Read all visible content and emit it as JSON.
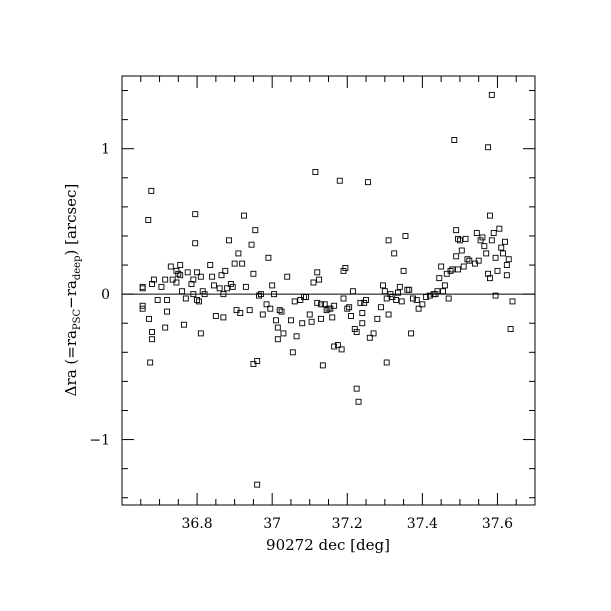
{
  "chart_data": {
    "type": "scatter",
    "xlabel": "90272 dec [deg]",
    "ylabel_parts": {
      "main": "Δra (=ra",
      "sub1": "PSC",
      "minus": "−ra",
      "sub2": "deep",
      "tail": ") [arcsec]"
    },
    "xlim": [
      36.6,
      37.7
    ],
    "ylim": [
      -1.45,
      1.5
    ],
    "xticks": [
      36.8,
      37.0,
      37.2,
      37.4,
      37.6
    ],
    "xtick_labels": [
      "36.8",
      "37",
      "37.2",
      "37.4",
      "37.6"
    ],
    "yticks": [
      -1,
      0,
      1
    ],
    "ytick_labels": [
      "−1",
      "0",
      "1"
    ],
    "reference_line_y": 0,
    "marker": "open-square",
    "points": [
      [
        36.655,
        0.05
      ],
      [
        36.655,
        0.04
      ],
      [
        36.655,
        -0.08
      ],
      [
        36.655,
        -0.1
      ],
      [
        36.67,
        0.51
      ],
      [
        36.672,
        -0.17
      ],
      [
        36.675,
        -0.47
      ],
      [
        36.678,
        0.71
      ],
      [
        36.68,
        -0.26
      ],
      [
        36.68,
        -0.31
      ],
      [
        36.68,
        0.07
      ],
      [
        36.685,
        0.1
      ],
      [
        36.695,
        -0.04
      ],
      [
        36.705,
        0.05
      ],
      [
        36.715,
        0.1
      ],
      [
        36.715,
        -0.23
      ],
      [
        36.72,
        -0.04
      ],
      [
        36.72,
        -0.12
      ],
      [
        36.73,
        0.19
      ],
      [
        36.735,
        0.1
      ],
      [
        36.745,
        0.16
      ],
      [
        36.745,
        0.08
      ],
      [
        36.75,
        0.14
      ],
      [
        36.755,
        0.2
      ],
      [
        36.755,
        0.13
      ],
      [
        36.76,
        0.02
      ],
      [
        36.765,
        -0.21
      ],
      [
        36.77,
        -0.03
      ],
      [
        36.775,
        0.15
      ],
      [
        36.785,
        0.07
      ],
      [
        36.79,
        0.1
      ],
      [
        36.79,
        0.0
      ],
      [
        36.795,
        0.55
      ],
      [
        36.795,
        0.35
      ],
      [
        36.8,
        0.15
      ],
      [
        36.8,
        -0.04
      ],
      [
        36.805,
        -0.05
      ],
      [
        36.81,
        -0.27
      ],
      [
        36.81,
        0.12
      ],
      [
        36.815,
        0.02
      ],
      [
        36.82,
        0.0
      ],
      [
        36.835,
        0.2
      ],
      [
        36.84,
        0.12
      ],
      [
        36.845,
        0.06
      ],
      [
        36.85,
        -0.15
      ],
      [
        36.86,
        0.04
      ],
      [
        36.865,
        0.13
      ],
      [
        36.87,
        -0.16
      ],
      [
        36.87,
        0.0
      ],
      [
        36.875,
        0.16
      ],
      [
        36.88,
        0.04
      ],
      [
        36.885,
        0.37
      ],
      [
        36.89,
        0.07
      ],
      [
        36.895,
        0.05
      ],
      [
        36.9,
        0.21
      ],
      [
        36.905,
        -0.11
      ],
      [
        36.91,
        0.28
      ],
      [
        36.915,
        -0.13
      ],
      [
        36.92,
        0.21
      ],
      [
        36.925,
        0.54
      ],
      [
        36.93,
        0.05
      ],
      [
        36.94,
        -0.11
      ],
      [
        36.945,
        0.34
      ],
      [
        36.95,
        0.14
      ],
      [
        36.95,
        -0.48
      ],
      [
        36.955,
        0.44
      ],
      [
        36.96,
        -0.46
      ],
      [
        36.96,
        -1.31
      ],
      [
        36.965,
        -0.01
      ],
      [
        36.97,
        0.0
      ],
      [
        36.975,
        -0.14
      ],
      [
        36.985,
        -0.07
      ],
      [
        36.99,
        0.25
      ],
      [
        36.995,
        -0.1
      ],
      [
        37.0,
        0.06
      ],
      [
        37.005,
        0.0
      ],
      [
        37.01,
        -0.18
      ],
      [
        37.015,
        -0.31
      ],
      [
        37.015,
        -0.23
      ],
      [
        37.02,
        -0.11
      ],
      [
        37.025,
        -0.12
      ],
      [
        37.03,
        -0.27
      ],
      [
        37.04,
        0.12
      ],
      [
        37.05,
        -0.18
      ],
      [
        37.055,
        -0.4
      ],
      [
        37.06,
        -0.05
      ],
      [
        37.065,
        -0.29
      ],
      [
        37.075,
        -0.04
      ],
      [
        37.08,
        -0.2
      ],
      [
        37.085,
        -0.02
      ],
      [
        37.09,
        -0.02
      ],
      [
        37.1,
        -0.14
      ],
      [
        37.105,
        -0.19
      ],
      [
        37.11,
        0.08
      ],
      [
        37.115,
        0.84
      ],
      [
        37.12,
        0.15
      ],
      [
        37.12,
        -0.06
      ],
      [
        37.125,
        0.1
      ],
      [
        37.13,
        -0.07
      ],
      [
        37.13,
        -0.17
      ],
      [
        37.135,
        -0.49
      ],
      [
        37.14,
        -0.07
      ],
      [
        37.145,
        -0.11
      ],
      [
        37.15,
        -0.1
      ],
      [
        37.155,
        -0.1
      ],
      [
        37.16,
        -0.16
      ],
      [
        37.165,
        -0.08
      ],
      [
        37.165,
        -0.36
      ],
      [
        37.175,
        -0.35
      ],
      [
        37.18,
        0.78
      ],
      [
        37.185,
        -0.38
      ],
      [
        37.19,
        -0.03
      ],
      [
        37.19,
        0.16
      ],
      [
        37.195,
        0.18
      ],
      [
        37.2,
        -0.1
      ],
      [
        37.205,
        -0.09
      ],
      [
        37.21,
        -0.15
      ],
      [
        37.215,
        0.02
      ],
      [
        37.22,
        -0.24
      ],
      [
        37.225,
        -0.26
      ],
      [
        37.225,
        -0.65
      ],
      [
        37.23,
        -0.74
      ],
      [
        37.235,
        -0.06
      ],
      [
        37.24,
        -0.13
      ],
      [
        37.24,
        -0.2
      ],
      [
        37.245,
        -0.06
      ],
      [
        37.25,
        -0.04
      ],
      [
        37.255,
        0.77
      ],
      [
        37.26,
        -0.3
      ],
      [
        37.27,
        -0.27
      ],
      [
        37.28,
        -0.17
      ],
      [
        37.29,
        -0.09
      ],
      [
        37.295,
        0.06
      ],
      [
        37.3,
        0.02
      ],
      [
        37.305,
        -0.47
      ],
      [
        37.305,
        -0.03
      ],
      [
        37.31,
        0.37
      ],
      [
        37.31,
        -0.14
      ],
      [
        37.315,
        0.0
      ],
      [
        37.32,
        -0.02
      ],
      [
        37.325,
        0.28
      ],
      [
        37.33,
        -0.04
      ],
      [
        37.335,
        0.01
      ],
      [
        37.34,
        0.05
      ],
      [
        37.345,
        -0.05
      ],
      [
        37.35,
        0.16
      ],
      [
        37.355,
        0.4
      ],
      [
        37.36,
        0.03
      ],
      [
        37.365,
        0.03
      ],
      [
        37.37,
        -0.27
      ],
      [
        37.375,
        -0.03
      ],
      [
        37.385,
        -0.04
      ],
      [
        37.39,
        -0.1
      ],
      [
        37.4,
        -0.07
      ],
      [
        37.41,
        -0.02
      ],
      [
        37.42,
        -0.01
      ],
      [
        37.43,
        0.0
      ],
      [
        37.435,
        0.0
      ],
      [
        37.44,
        0.02
      ],
      [
        37.445,
        0.11
      ],
      [
        37.45,
        0.19
      ],
      [
        37.455,
        0.02
      ],
      [
        37.46,
        0.06
      ],
      [
        37.465,
        0.14
      ],
      [
        37.47,
        -0.03
      ],
      [
        37.475,
        0.16
      ],
      [
        37.48,
        0.17
      ],
      [
        37.485,
        1.06
      ],
      [
        37.49,
        0.44
      ],
      [
        37.49,
        0.26
      ],
      [
        37.495,
        0.38
      ],
      [
        37.495,
        0.17
      ],
      [
        37.5,
        0.37
      ],
      [
        37.505,
        0.3
      ],
      [
        37.51,
        0.19
      ],
      [
        37.515,
        0.38
      ],
      [
        37.52,
        0.24
      ],
      [
        37.525,
        0.23
      ],
      [
        37.54,
        0.21
      ],
      [
        37.545,
        0.42
      ],
      [
        37.55,
        0.23
      ],
      [
        37.555,
        0.37
      ],
      [
        37.56,
        0.39
      ],
      [
        37.565,
        0.33
      ],
      [
        37.57,
        0.28
      ],
      [
        37.575,
        1.01
      ],
      [
        37.575,
        0.14
      ],
      [
        37.58,
        0.11
      ],
      [
        37.58,
        0.54
      ],
      [
        37.585,
        0.37
      ],
      [
        37.585,
        1.37
      ],
      [
        37.59,
        0.42
      ],
      [
        37.595,
        0.25
      ],
      [
        37.595,
        -0.01
      ],
      [
        37.6,
        0.16
      ],
      [
        37.605,
        0.45
      ],
      [
        37.61,
        0.32
      ],
      [
        37.615,
        0.28
      ],
      [
        37.62,
        0.36
      ],
      [
        37.625,
        0.2
      ],
      [
        37.625,
        0.13
      ],
      [
        37.63,
        0.24
      ],
      [
        37.635,
        -0.24
      ],
      [
        37.64,
        -0.05
      ]
    ]
  }
}
